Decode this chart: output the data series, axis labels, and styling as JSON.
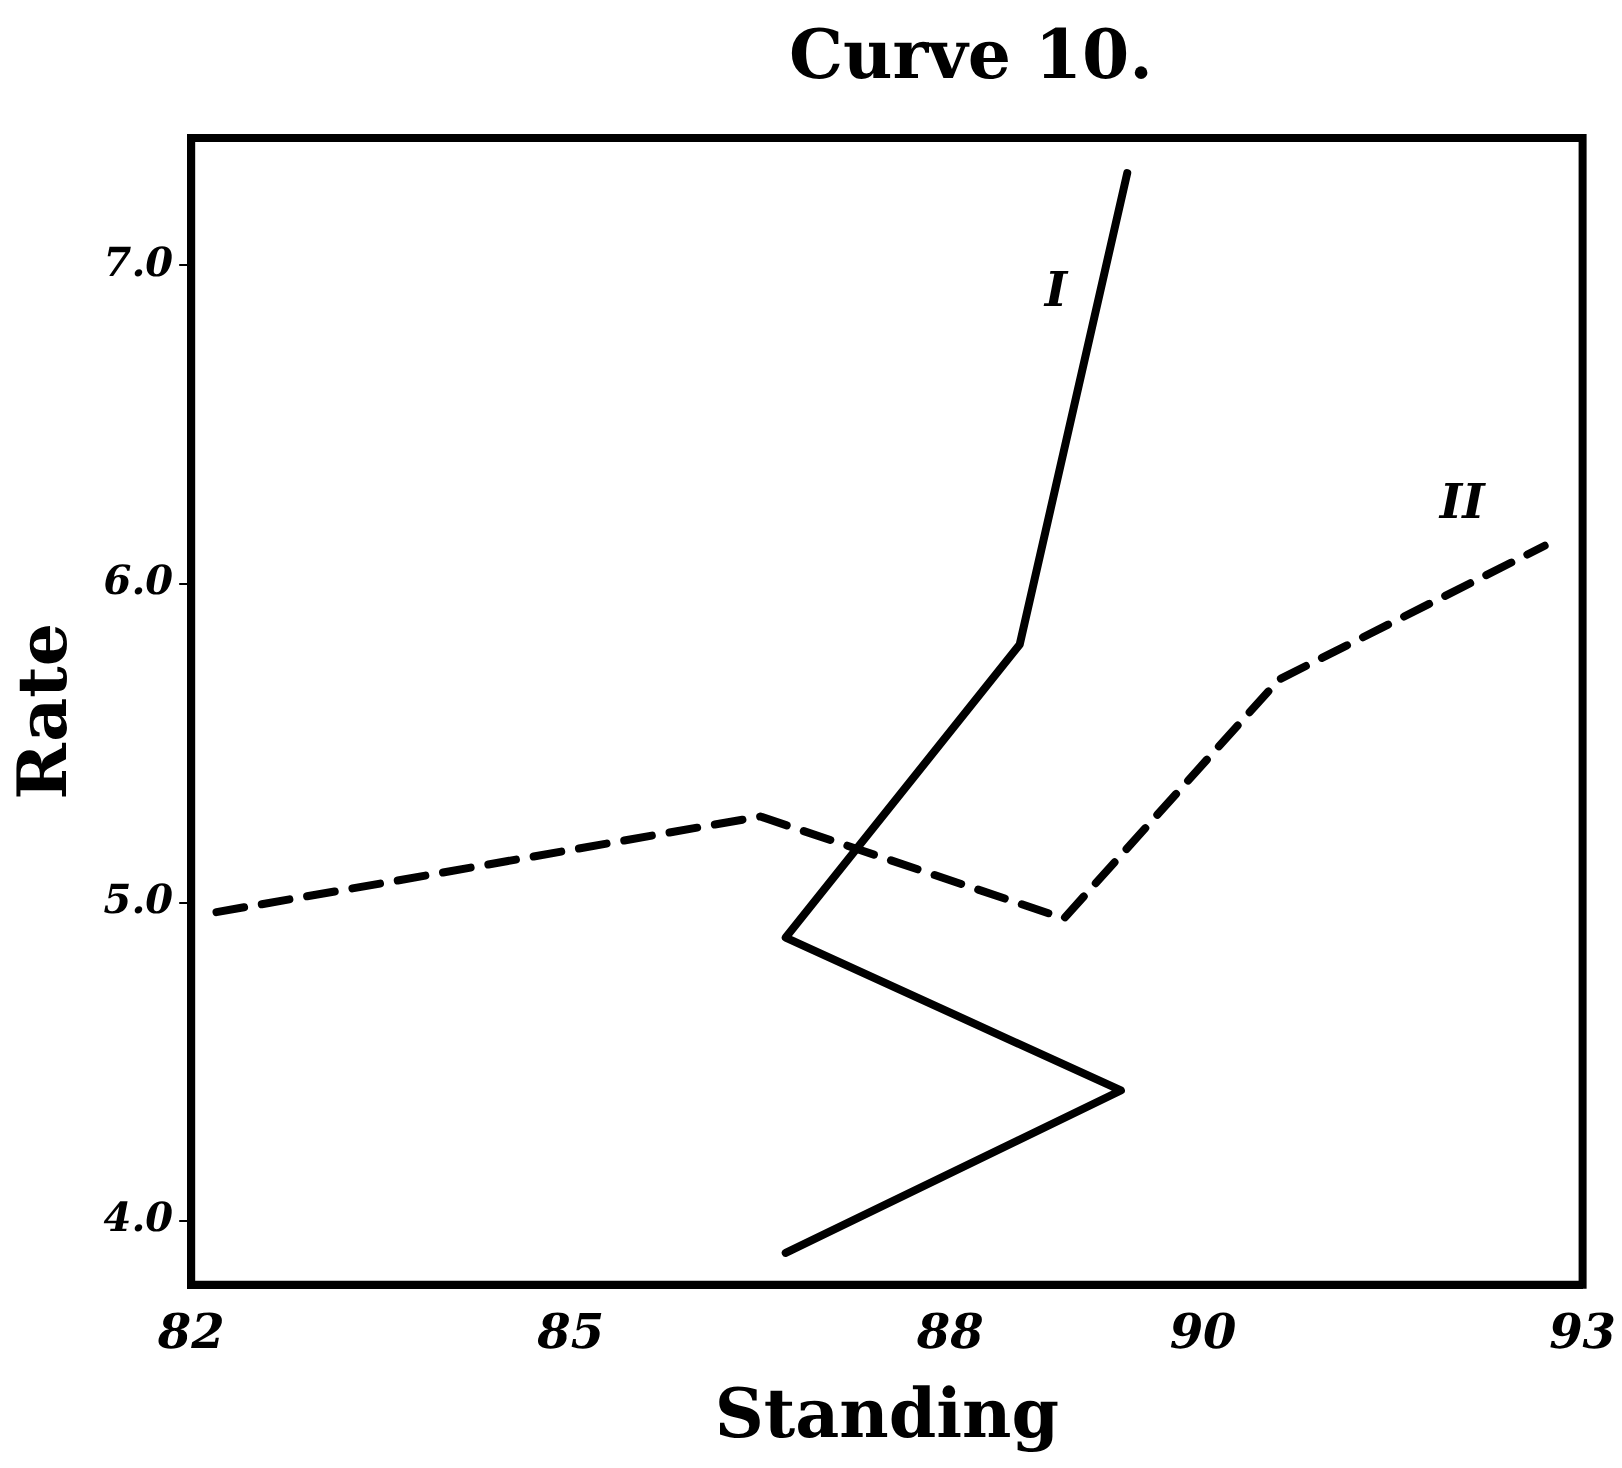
{
  "chart_data": {
    "type": "line",
    "title": "Curve 10.",
    "xlabel": "Standing",
    "ylabel": "Rate",
    "xlim": [
      82,
      93
    ],
    "xticks": [
      82,
      85,
      88,
      90,
      93
    ],
    "ylim": [
      3.8,
      7.4
    ],
    "yticks": [
      {
        "value": 4,
        "label": "4.0"
      },
      {
        "value": 5,
        "label": "5.0"
      },
      {
        "value": 6,
        "label": "6.0"
      },
      {
        "value": 7,
        "label": "7.0"
      }
    ],
    "grid": false,
    "legend": false,
    "marker": "none",
    "series": [
      {
        "name": "I",
        "color": "#000000",
        "line_style": "solid",
        "x": [
          86.7,
          89.35,
          86.7,
          88.55,
          89.4
        ],
        "values": [
          3.9,
          4.41,
          4.89,
          5.81,
          7.29
        ]
      },
      {
        "name": "II",
        "color": "#000000",
        "line_style": "dashed",
        "x": [
          82.2,
          83.5,
          86.5,
          88.9,
          90.6,
          92.7
        ],
        "values": [
          4.97,
          5.06,
          5.27,
          4.95,
          5.7,
          6.12
        ]
      }
    ]
  }
}
